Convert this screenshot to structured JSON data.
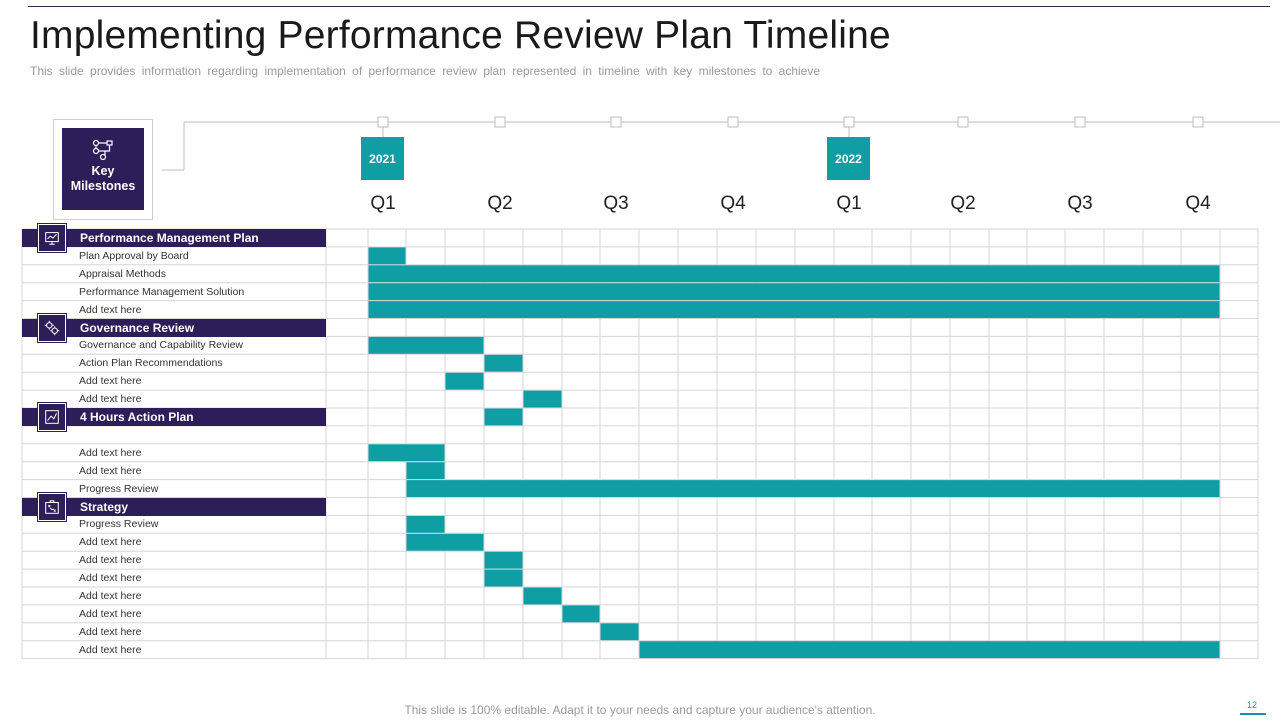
{
  "header": {
    "title": "Implementing Performance Review Plan Timeline",
    "subtitle": "This slide provides information regarding implementation of performance review plan represented in timeline with key milestones to achieve"
  },
  "milestones_box": {
    "label": "Key\nMilestones",
    "icon": "workflow-icon"
  },
  "timeline": {
    "years": [
      {
        "label": "2021",
        "quarter_index": 0
      },
      {
        "label": "2022",
        "quarter_index": 4
      }
    ],
    "quarters": [
      "Q1",
      "Q2",
      "Q3",
      "Q4",
      "Q1",
      "Q2",
      "Q3",
      "Q4"
    ]
  },
  "gantt": {
    "bar_color": "#0e9ea3",
    "section_color": "#2d1e59",
    "sections": [
      {
        "title": "Performance Management Plan",
        "icon": "presentation-icon",
        "rows": [
          {
            "label": "Plan  Approval by Board",
            "start": 1,
            "end": 1
          },
          {
            "label": "Appraisal Methods",
            "start": 1,
            "end": 22
          },
          {
            "label": "Performance Management  Solution",
            "start": 1,
            "end": 22
          },
          {
            "label": "Add text here",
            "start": 1,
            "end": 22
          }
        ]
      },
      {
        "title": "Governance  Review",
        "icon": "gears-icon",
        "rows": [
          {
            "label": "Governance and Capability  Review",
            "start": 1,
            "end": 3
          },
          {
            "label": "Action Plan Recommendations",
            "start": 4,
            "end": 4
          },
          {
            "label": "Add text here",
            "start": 3,
            "end": 3
          },
          {
            "label": "Add text here",
            "start": 5,
            "end": 5
          }
        ]
      },
      {
        "title": "4 Hours  Action  Plan",
        "icon": "chart-icon",
        "bar_on_header": {
          "start": 4,
          "end": 4
        },
        "rows": [
          {
            "label": "",
            "start": null,
            "end": null
          },
          {
            "label": "Add text here",
            "start": 1,
            "end": 2
          },
          {
            "label": "Add text here",
            "start": 2,
            "end": 2
          },
          {
            "label": "Progress Review",
            "start": 2,
            "end": 22
          }
        ]
      },
      {
        "title": "Strategy",
        "icon": "strategy-icon",
        "rows": [
          {
            "label": "Progress Review",
            "start": 2,
            "end": 2
          },
          {
            "label": "Add text here",
            "start": 2,
            "end": 3
          },
          {
            "label": "Add text here",
            "start": 4,
            "end": 4
          },
          {
            "label": "Add text here",
            "start": 4,
            "end": 4
          },
          {
            "label": "Add text here",
            "start": 5,
            "end": 5
          },
          {
            "label": "Add text here",
            "start": 6,
            "end": 6
          },
          {
            "label": "Add text here",
            "start": 7,
            "end": 7
          },
          {
            "label": "Add text here",
            "start": 8,
            "end": 22
          }
        ]
      }
    ]
  },
  "footer": {
    "text": "This slide is 100% editable. Adapt it to your needs and capture your audience's attention.",
    "page_number": "12"
  }
}
